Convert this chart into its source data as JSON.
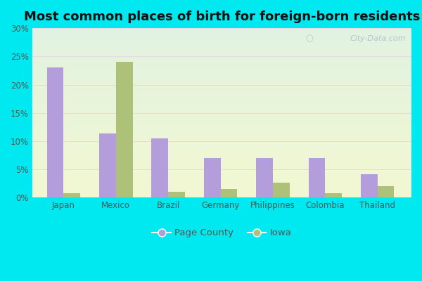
{
  "title": "Most common places of birth for foreign-born residents",
  "categories": [
    "Japan",
    "Mexico",
    "Brazil",
    "Germany",
    "Philippines",
    "Colombia",
    "Thailand"
  ],
  "page_county": [
    23.0,
    11.3,
    10.5,
    7.0,
    7.0,
    7.0,
    4.2
  ],
  "iowa": [
    0.8,
    24.0,
    1.0,
    1.5,
    2.7,
    0.8,
    2.0
  ],
  "bar_color_county": "#b39ddb",
  "bar_color_iowa": "#adc178",
  "background_color_outer": "#00e8f0",
  "ylabel_ticks": [
    "0%",
    "5%",
    "10%",
    "15%",
    "20%",
    "25%",
    "30%"
  ],
  "yticks": [
    0,
    5,
    10,
    15,
    20,
    25,
    30
  ],
  "ylim": [
    0,
    30
  ],
  "legend_county": "Page County",
  "legend_iowa": "Iowa",
  "title_fontsize": 13,
  "tick_fontsize": 8.5,
  "legend_fontsize": 9.5,
  "bar_width": 0.32,
  "watermark": "City-Data.com"
}
